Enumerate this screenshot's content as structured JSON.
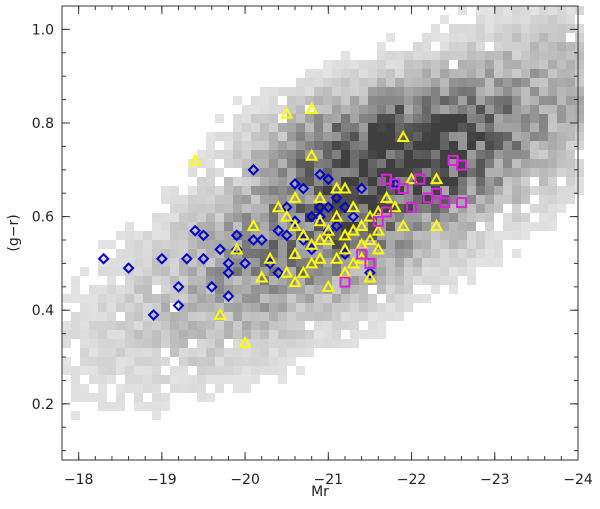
{
  "chart_data": {
    "type": "scatter",
    "title": "",
    "xlabel": "Mr",
    "ylabel": "(g−r)",
    "xlim": [
      -17.8,
      -24.0
    ],
    "ylim": [
      0.08,
      1.05
    ],
    "x_ticks": [
      -18,
      -19,
      -20,
      -21,
      -22,
      -23,
      -24
    ],
    "x_tick_labels": [
      "−18",
      "−19",
      "−20",
      "−21",
      "−22",
      "−23",
      "−24"
    ],
    "y_ticks": [
      0.2,
      0.4,
      0.6,
      0.8,
      1.0
    ],
    "y_tick_labels": [
      "0.2",
      "0.4",
      "0.6",
      "0.8",
      "1.0"
    ],
    "grid": false,
    "background": {
      "kind": "density-histogram",
      "color": "grayscale",
      "description_peak": {
        "x": -21.6,
        "y": 0.76
      }
    },
    "series": [
      {
        "marker": "diamond",
        "color": "#0000cc",
        "points": [
          [
            -18.3,
            0.51
          ],
          [
            -18.6,
            0.49
          ],
          [
            -18.9,
            0.39
          ],
          [
            -19.0,
            0.51
          ],
          [
            -19.2,
            0.45
          ],
          [
            -19.2,
            0.41
          ],
          [
            -19.3,
            0.51
          ],
          [
            -19.4,
            0.57
          ],
          [
            -19.5,
            0.56
          ],
          [
            -19.5,
            0.51
          ],
          [
            -19.6,
            0.45
          ],
          [
            -19.7,
            0.53
          ],
          [
            -19.8,
            0.5
          ],
          [
            -19.8,
            0.48
          ],
          [
            -19.8,
            0.43
          ],
          [
            -19.9,
            0.56
          ],
          [
            -19.9,
            0.53
          ],
          [
            -20.0,
            0.5
          ],
          [
            -20.1,
            0.55
          ],
          [
            -20.1,
            0.7
          ],
          [
            -20.2,
            0.55
          ],
          [
            -20.3,
            0.5
          ],
          [
            -20.4,
            0.57
          ],
          [
            -20.4,
            0.48
          ],
          [
            -20.5,
            0.56
          ],
          [
            -20.5,
            0.62
          ],
          [
            -20.6,
            0.67
          ],
          [
            -20.6,
            0.59
          ],
          [
            -20.7,
            0.66
          ],
          [
            -20.7,
            0.55
          ],
          [
            -20.8,
            0.6
          ],
          [
            -20.8,
            0.53
          ],
          [
            -20.9,
            0.69
          ],
          [
            -20.9,
            0.62
          ],
          [
            -21.0,
            0.68
          ],
          [
            -21.0,
            0.57
          ],
          [
            -21.1,
            0.64
          ],
          [
            -21.1,
            0.58
          ],
          [
            -21.2,
            0.62
          ],
          [
            -21.2,
            0.52
          ],
          [
            -21.3,
            0.6
          ],
          [
            -21.4,
            0.66
          ],
          [
            -21.5,
            0.48
          ],
          [
            -21.8,
            0.67
          ],
          [
            -20.9,
            0.6
          ],
          [
            -21.0,
            0.62
          ]
        ]
      },
      {
        "marker": "triangle",
        "color": "#ffff00",
        "points": [
          [
            -19.4,
            0.72
          ],
          [
            -19.7,
            0.39
          ],
          [
            -20.0,
            0.33
          ],
          [
            -20.5,
            0.82
          ],
          [
            -20.8,
            0.83
          ],
          [
            -20.8,
            0.73
          ],
          [
            -21.9,
            0.77
          ],
          [
            -22.3,
            0.58
          ],
          [
            -20.4,
            0.62
          ],
          [
            -20.5,
            0.6
          ],
          [
            -20.6,
            0.58
          ],
          [
            -20.6,
            0.52
          ],
          [
            -20.7,
            0.56
          ],
          [
            -20.8,
            0.54
          ],
          [
            -20.9,
            0.64
          ],
          [
            -20.9,
            0.59
          ],
          [
            -21.0,
            0.57
          ],
          [
            -21.0,
            0.55
          ],
          [
            -21.1,
            0.66
          ],
          [
            -21.1,
            0.6
          ],
          [
            -21.2,
            0.56
          ],
          [
            -21.2,
            0.53
          ],
          [
            -21.3,
            0.62
          ],
          [
            -21.3,
            0.5
          ],
          [
            -21.4,
            0.58
          ],
          [
            -21.4,
            0.54
          ],
          [
            -21.5,
            0.6
          ],
          [
            -21.5,
            0.47
          ],
          [
            -21.6,
            0.57
          ],
          [
            -21.6,
            0.53
          ],
          [
            -21.7,
            0.64
          ],
          [
            -21.8,
            0.62
          ],
          [
            -21.9,
            0.58
          ],
          [
            -22.0,
            0.68
          ],
          [
            -20.2,
            0.47
          ],
          [
            -20.3,
            0.51
          ],
          [
            -20.1,
            0.58
          ],
          [
            -20.5,
            0.48
          ],
          [
            -20.6,
            0.46
          ],
          [
            -20.8,
            0.5
          ],
          [
            -21.0,
            0.45
          ],
          [
            -21.2,
            0.48
          ],
          [
            -21.4,
            0.51
          ],
          [
            -21.1,
            0.51
          ],
          [
            -20.9,
            0.55
          ],
          [
            -21.3,
            0.57
          ],
          [
            -21.5,
            0.55
          ],
          [
            -21.6,
            0.61
          ],
          [
            -20.7,
            0.48
          ],
          [
            -19.9,
            0.53
          ],
          [
            -22.3,
            0.68
          ],
          [
            -21.2,
            0.66
          ],
          [
            -20.6,
            0.64
          ],
          [
            -20.9,
            0.51
          ]
        ]
      },
      {
        "marker": "square",
        "color": "#dd22dd",
        "points": [
          [
            -21.2,
            0.46
          ],
          [
            -21.4,
            0.52
          ],
          [
            -21.5,
            0.5
          ],
          [
            -21.6,
            0.59
          ],
          [
            -21.7,
            0.61
          ],
          [
            -21.8,
            0.67
          ],
          [
            -21.9,
            0.66
          ],
          [
            -22.0,
            0.62
          ],
          [
            -22.1,
            0.68
          ],
          [
            -22.2,
            0.64
          ],
          [
            -22.3,
            0.65
          ],
          [
            -22.4,
            0.63
          ],
          [
            -22.5,
            0.72
          ],
          [
            -22.6,
            0.71
          ],
          [
            -22.6,
            0.63
          ],
          [
            -21.7,
            0.68
          ]
        ]
      }
    ]
  }
}
